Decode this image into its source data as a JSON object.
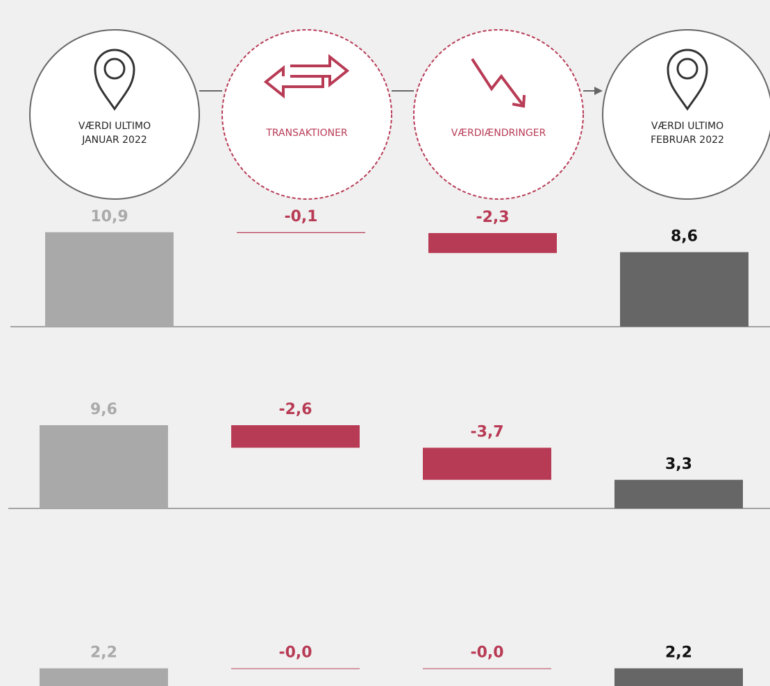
{
  "steps": [
    {
      "lines": [
        "VÆRDI ULTIMO",
        "JANUAR 2022"
      ]
    },
    {
      "lines": [
        "TRANSAKTIONER"
      ]
    },
    {
      "lines": [
        "VÆRDIÆNDRINGER"
      ]
    },
    {
      "lines": [
        "VÆRDI ULTIMO",
        "FEBRUAR 2022"
      ]
    }
  ],
  "chart_data": [
    {
      "type": "waterfall",
      "values": [
        10.9,
        -0.1,
        -2.3,
        8.6
      ],
      "value_labels": [
        "10,9",
        "-0,1",
        "-2,3",
        "8,6"
      ],
      "colors": [
        "#a9a9a9",
        "#b83b55",
        "#b83b55",
        "#666666"
      ],
      "label_colors": [
        "#aaaaaa",
        "#b83b55",
        "#b83b55",
        "#111111"
      ]
    },
    {
      "type": "waterfall",
      "values": [
        9.6,
        -2.6,
        -3.7,
        3.3
      ],
      "value_labels": [
        "9,6",
        "-2,6",
        "-3,7",
        "3,3"
      ],
      "colors": [
        "#a9a9a9",
        "#b83b55",
        "#b83b55",
        "#666666"
      ],
      "label_colors": [
        "#aaaaaa",
        "#b83b55",
        "#b83b55",
        "#111111"
      ]
    },
    {
      "type": "waterfall",
      "values": [
        2.2,
        0,
        0,
        2.2
      ],
      "value_labels": [
        "2,2",
        "-0,0",
        "-0,0",
        "2,2"
      ],
      "colors": [
        "#a9a9a9",
        "#b83b55",
        "#b83b55",
        "#666666"
      ],
      "label_colors": [
        "#aaaaaa",
        "#b83b55",
        "#b83b55",
        "#111111"
      ]
    }
  ]
}
